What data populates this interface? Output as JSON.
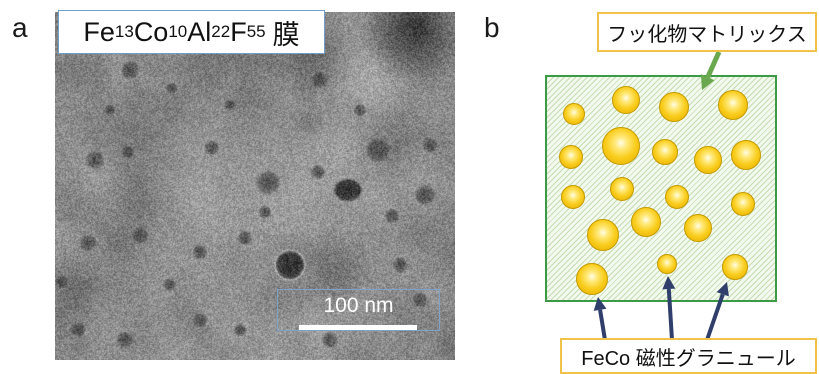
{
  "figure": {
    "panel_a": {
      "letter": "a",
      "film_label": {
        "parts": [
          {
            "symbol": "Fe",
            "sub": "13"
          },
          {
            "symbol": "Co",
            "sub": "10"
          },
          {
            "symbol": "Al",
            "sub": "22"
          },
          {
            "symbol": "F",
            "sub": "55"
          }
        ],
        "suffix": "膜"
      },
      "scale_bar_label": "100 nm"
    },
    "panel_b": {
      "letter": "b",
      "matrix_label": "フッ化物マトリックス",
      "granule_label": "FeCo 磁性グラニュール"
    }
  },
  "colors": {
    "matrix_border": "#3a9a46",
    "matrix_arrow": "#6aa84f",
    "granule_fill": "#f7c600",
    "granule_arrow": "#2f3e6b",
    "callout_border": "#f0c24a",
    "film_label_border": "#6f9fc8",
    "scale_bar_border": "#7fa3c8"
  }
}
